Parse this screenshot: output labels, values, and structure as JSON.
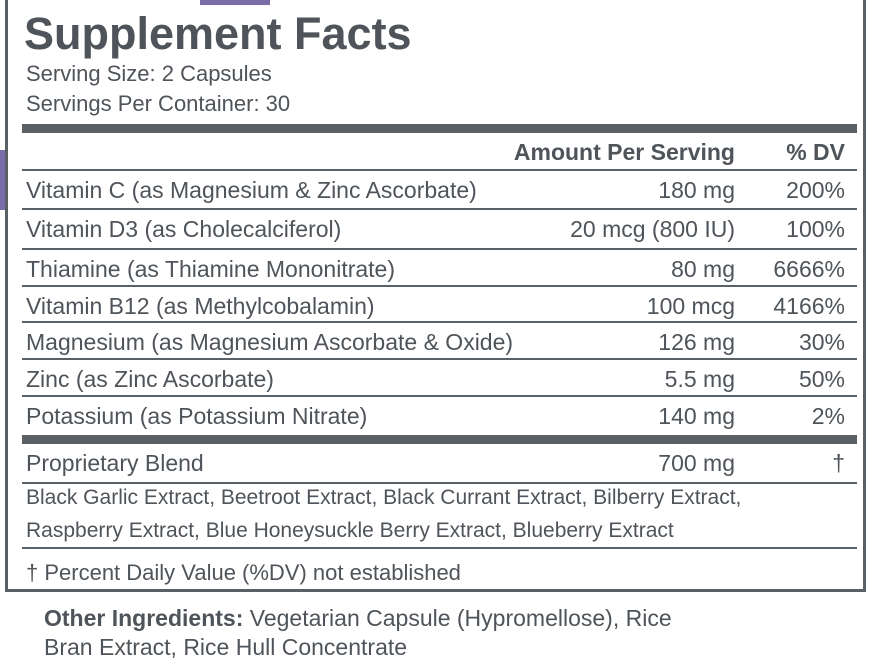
{
  "header": {
    "title": "Supplement Facts",
    "serving_size": "Serving Size: 2 Capsules",
    "servings_per_container": "Servings Per Container: 30"
  },
  "table": {
    "columns": [
      "Amount Per Serving",
      "% DV"
    ],
    "rows": [
      [
        "Vitamin C (as Magnesium & Zinc Ascorbate)",
        "180 mg",
        "200%"
      ],
      [
        "Vitamin D3 (as Cholecalciferol)",
        "20 mcg (800 IU)",
        "100%"
      ],
      [
        "Thiamine (as Thiamine Mononitrate)",
        "80 mg",
        "6666%"
      ],
      [
        "Vitamin B12 (as Methylcobalamin)",
        "100 mcg",
        "4166%"
      ],
      [
        "Magnesium (as Magnesium Ascorbate & Oxide)",
        "126 mg",
        "30%"
      ],
      [
        "Zinc (as Zinc Ascorbate)",
        "5.5 mg",
        "50%"
      ],
      [
        "Potassium (as Potassium Nitrate)",
        "140 mg",
        "2%"
      ]
    ]
  },
  "proprietary_blend": {
    "name": "Proprietary Blend",
    "amount": "700 mg",
    "dv": "†",
    "ingredient_lines": [
      "Black Garlic Extract, Beetroot Extract, Black Currant Extract, Bilberry Extract,",
      "Raspberry Extract, Blue Honeysuckle Berry Extract, Blueberry Extract"
    ]
  },
  "footnote": "† Percent Daily Value (%DV) not established",
  "other_ingredients": {
    "label": "Other Ingredients:",
    "lines": [
      "Vegetarian Capsule (Hypromellose), Rice",
      "Bran Extract, Rice Hull Concentrate"
    ]
  }
}
